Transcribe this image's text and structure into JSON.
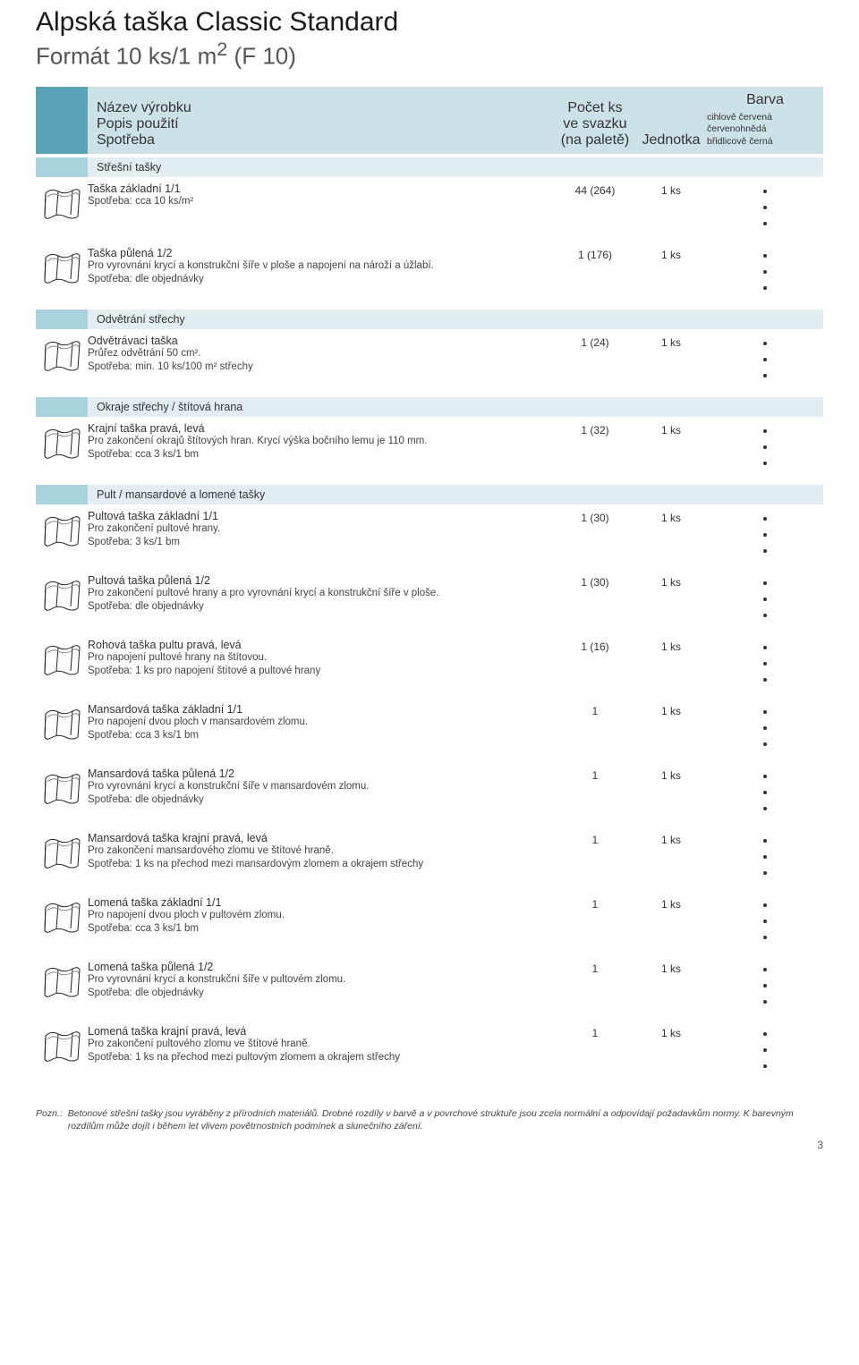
{
  "title": "Alpská taška Classic Standard",
  "subtitle_pre": "Formát 10 ks/1 m",
  "subtitle_sup": "2",
  "subtitle_post": " (F 10)",
  "columns": {
    "desc_line1": "Název výrobku",
    "desc_line2": "Popis použití",
    "desc_line3": "Spotřeba",
    "qty_line1": "Počet ks",
    "qty_line2": "ve svazku",
    "qty_line3": "(na paletě)",
    "unit": "Jednotka",
    "color_title": "Barva",
    "color_names": [
      "cihlově červená",
      "červenohnědá",
      "břidlicově černá"
    ]
  },
  "band_colors": {
    "header_accent": "#5aa3b7",
    "header_body": "#cde2e8",
    "section_accent": "#a9d3dd",
    "section_body": "#e2eef2"
  },
  "sections": [
    {
      "title": "Střešní tašky",
      "rows": [
        {
          "name": "Taška základní 1/1",
          "d1": "Spotřeba: cca 10 ks/m²",
          "d2": "",
          "qty": "44 (264)",
          "unit": "1 ks",
          "dots": 3
        },
        {
          "name": "Taška půlená 1/2",
          "d1": "Pro vyrovnání krycí a konstrukční šíře v ploše a napojení na nároží a úžlabí.",
          "d2": "Spotřeba: dle objednávky",
          "qty": "1 (176)",
          "unit": "1 ks",
          "dots": 3
        }
      ]
    },
    {
      "title": "Odvětrání střechy",
      "rows": [
        {
          "name": "Odvětrávací taška",
          "d1": "Průřez odvětrání 50 cm².",
          "d2": "Spotřeba: min. 10 ks/100 m² střechy",
          "qty": "1 (24)",
          "unit": "1 ks",
          "dots": 3
        }
      ]
    },
    {
      "title": "Okraje střechy / štítová hrana",
      "rows": [
        {
          "name": "Krajní taška pravá, levá",
          "d1": "Pro zakončení okrajů štítových hran. Krycí výška bočního lemu je 110 mm.",
          "d2": "Spotřeba: cca 3 ks/1 bm",
          "qty": "1 (32)",
          "unit": "1 ks",
          "dots": 3
        }
      ]
    },
    {
      "title": "Pult / mansardové a lomené tašky",
      "rows": [
        {
          "name": "Pultová taška základní 1/1",
          "d1": "Pro zakončení pultové hrany.",
          "d2": "Spotřeba: 3 ks/1 bm",
          "qty": "1 (30)",
          "unit": "1 ks",
          "dots": 3
        },
        {
          "name": "Pultová taška půlená 1/2",
          "d1": "Pro zakončení pultové hrany a pro vyrovnání krycí a konstrukční šíře v ploše.",
          "d2": "Spotřeba: dle objednávky",
          "qty": "1 (30)",
          "unit": "1 ks",
          "dots": 3
        },
        {
          "name": "Rohová taška pultu pravá, levá",
          "d1": "Pro napojení pultové hrany na štítovou.",
          "d2": "Spotřeba: 1 ks pro napojení štítové a pultové hrany",
          "qty": "1 (16)",
          "unit": "1 ks",
          "dots": 3
        },
        {
          "name": "Mansardová taška základní 1/1",
          "d1": "Pro napojení dvou ploch v mansardovém zlomu.",
          "d2": "Spotřeba: cca 3 ks/1 bm",
          "qty": "1",
          "unit": "1 ks",
          "dots": 3
        },
        {
          "name": "Mansardová taška půlená 1/2",
          "d1": "Pro vyrovnání krycí a konstrukční šíře v mansardovém zlomu.",
          "d2": "Spotřeba: dle objednávky",
          "qty": "1",
          "unit": "1 ks",
          "dots": 3
        },
        {
          "name": "Mansardová taška krajní pravá, levá",
          "d1": "Pro zakončení mansardového zlomu ve štítové hraně.",
          "d2": "Spotřeba: 1 ks na přechod mezi mansardovým zlomem a okrajem střechy",
          "qty": "1",
          "unit": "1 ks",
          "dots": 3
        },
        {
          "name": "Lomená taška základní 1/1",
          "d1": "Pro napojení dvou ploch v pultovém zlomu.",
          "d2": "Spotřeba: cca  3 ks/1 bm",
          "qty": "1",
          "unit": "1 ks",
          "dots": 3
        },
        {
          "name": "Lomená taška půlená 1/2",
          "d1": "Pro vyrovnání krycí a konstrukční šíře v pultovém zlomu.",
          "d2": "Spotřeba: dle objednávky",
          "qty": "1",
          "unit": "1 ks",
          "dots": 3
        },
        {
          "name": "Lomená taška krajní pravá, levá",
          "d1": "Pro zakončení pultového zlomu ve štítové hraně.",
          "d2": "Spotřeba: 1 ks na přechod mezi pultovým zlomem a okrajem střechy",
          "qty": "1",
          "unit": "1 ks",
          "dots": 3
        }
      ]
    }
  ],
  "footnote_lead": "Pozn.:",
  "footnote_text": "Betonové střešní tašky jsou vyráběny z přírodních materiálů. Drobné rozdíly v barvě a v povrchové struktuře jsou zcela normální a odpovídají požadavkům normy. K barevným rozdílům může dojít i během let vlivem povětrnostních podmínek a slunečního záření.",
  "page_number": "3"
}
